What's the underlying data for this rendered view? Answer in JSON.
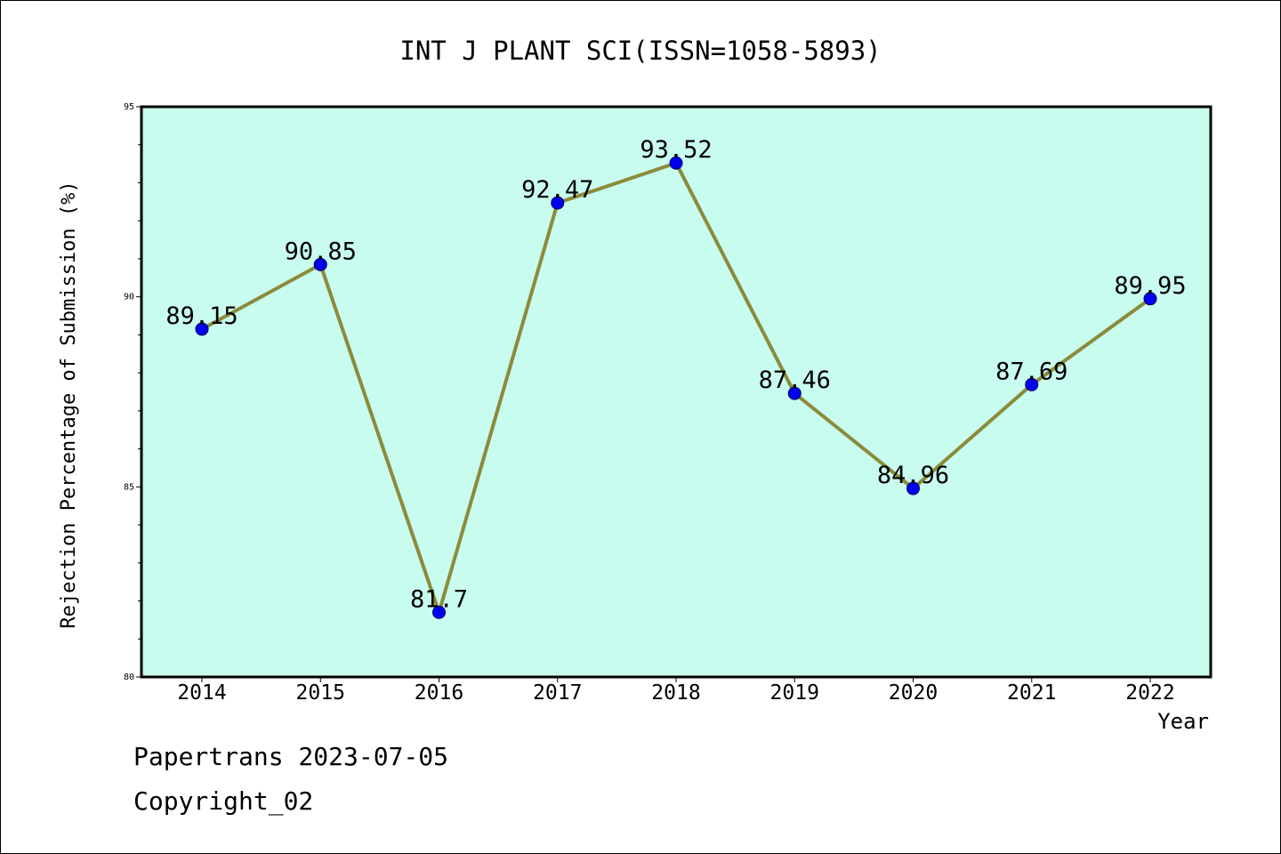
{
  "chart_data": {
    "type": "line",
    "title": "INT J PLANT SCI(ISSN=1058-5893)",
    "xlabel": "Year",
    "ylabel": "Rejection Percentage of Submission (%)",
    "categories": [
      "2014",
      "2015",
      "2016",
      "2017",
      "2018",
      "2019",
      "2020",
      "2021",
      "2022"
    ],
    "values": [
      89.15,
      90.85,
      81.7,
      92.47,
      93.52,
      87.46,
      84.96,
      87.69,
      89.95
    ],
    "data_labels": [
      "89.15",
      "90.85",
      "81.7",
      "92.47",
      "93.52",
      "87.46",
      "84.96",
      "87.69",
      "89.95"
    ],
    "ylim": [
      80,
      95
    ],
    "yticks": [
      80,
      85,
      90,
      95
    ],
    "grid": false,
    "legend": "none",
    "colors": {
      "plot_background": "#c8fcee",
      "line": "#8b8b3a",
      "marker": "#0000ee",
      "axes": "#000000"
    }
  },
  "footer": {
    "date_line": "Papertrans 2023-07-05",
    "copyright_line": "Copyright_02"
  }
}
